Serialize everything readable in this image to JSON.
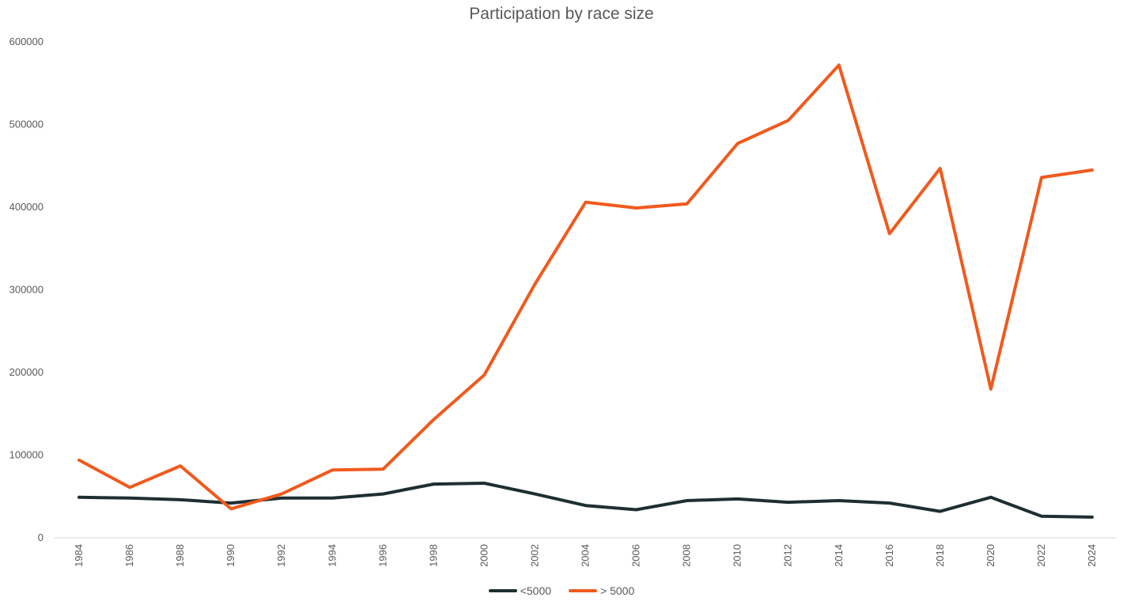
{
  "chart_data": {
    "type": "line",
    "title": "Participation by race size",
    "xlabel": "",
    "ylabel": "",
    "x": [
      "1984",
      "1986",
      "1988",
      "1990",
      "1992",
      "1994",
      "1996",
      "1998",
      "2000",
      "2002",
      "2004",
      "2006",
      "2008",
      "2010",
      "2012",
      "2014",
      "2016",
      "2018",
      "2020",
      "2022",
      "2024"
    ],
    "ylim": [
      0,
      600000
    ],
    "yticks": [
      "0",
      "100000",
      "200000",
      "300000",
      "400000",
      "500000",
      "600000"
    ],
    "grid": false,
    "legend_position": "bottom",
    "series": [
      {
        "name": "<5000",
        "color": "#1e2f33",
        "values": [
          49000,
          48000,
          46000,
          42000,
          48000,
          48000,
          53000,
          65000,
          66000,
          53000,
          39000,
          34000,
          45000,
          47000,
          43000,
          45000,
          42000,
          32000,
          49000,
          26000,
          25000
        ]
      },
      {
        "name": "> 5000",
        "color": "#f05a1e",
        "values": [
          94000,
          61000,
          87000,
          35000,
          53000,
          82000,
          83000,
          143000,
          197000,
          307000,
          406000,
          399000,
          404000,
          477000,
          505000,
          572000,
          368000,
          447000,
          180000,
          436000,
          445000
        ]
      }
    ]
  }
}
